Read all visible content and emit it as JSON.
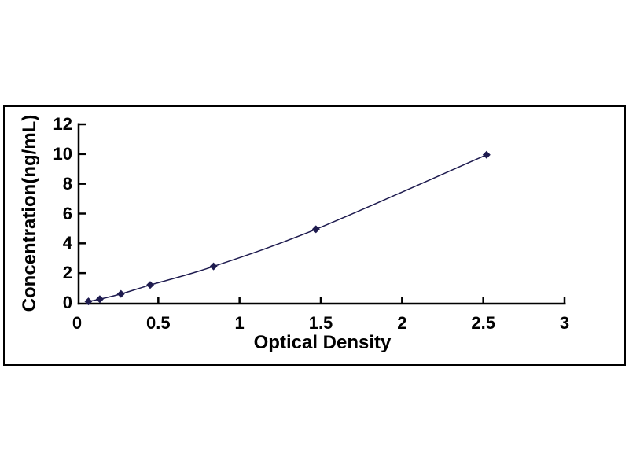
{
  "chart_data": {
    "type": "line",
    "title": "",
    "xlabel": "Optical Density",
    "ylabel": "Concentration(ng/mL)",
    "x": [
      0.07,
      0.14,
      0.27,
      0.45,
      0.84,
      1.47,
      2.52
    ],
    "y": [
      0.1,
      0.25,
      0.6,
      1.2,
      2.45,
      4.95,
      9.95
    ],
    "xlim": [
      0,
      3
    ],
    "ylim": [
      0,
      12
    ],
    "x_tick_values": [
      0,
      0.5,
      1,
      1.5,
      2,
      2.5,
      3
    ],
    "x_tick_labels": [
      "0",
      "0.5",
      "1",
      "1.5",
      "2",
      "2.5",
      "3"
    ],
    "y_tick_values": [
      0,
      2,
      4,
      6,
      8,
      10,
      12
    ],
    "y_tick_labels": [
      "0",
      "2",
      "4",
      "6",
      "8",
      "10",
      "12"
    ],
    "grid": false,
    "legend": "none",
    "marker": "diamond",
    "colors": {
      "line": "#1e1b4f",
      "marker": "#1e1b4f",
      "axis": "#000000",
      "frame": "#000000",
      "background": "#ffffff"
    }
  }
}
